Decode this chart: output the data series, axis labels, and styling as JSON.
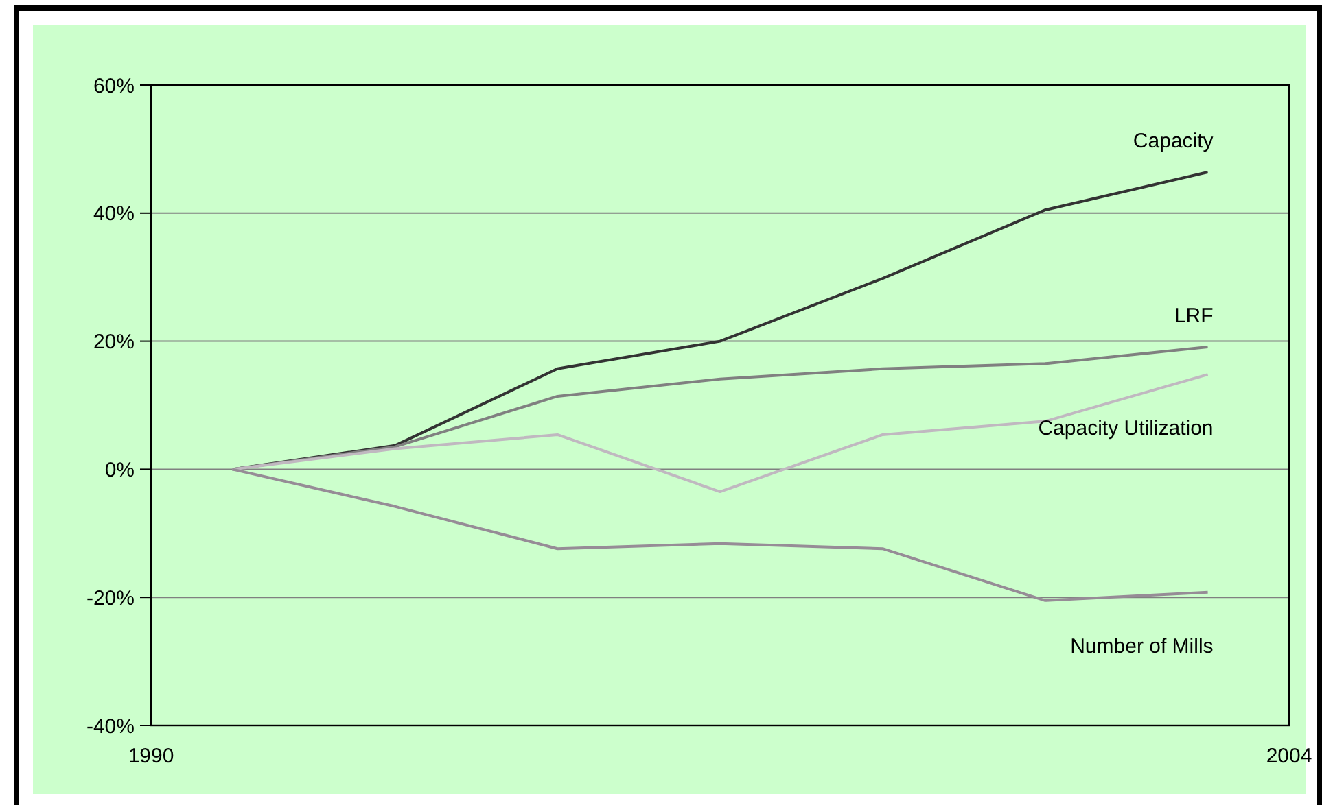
{
  "chart_data": {
    "type": "line",
    "x": [
      1991,
      1993,
      1995,
      1997,
      1999,
      2001,
      2003
    ],
    "xlim": [
      1990,
      2004
    ],
    "xticks": [
      1990,
      2004
    ],
    "ylim": [
      -40,
      60
    ],
    "yticks": [
      {
        "value": -40,
        "label": "-40%"
      },
      {
        "value": -20,
        "label": "-20%"
      },
      {
        "value": 0,
        "label": "0%"
      },
      {
        "value": 20,
        "label": "20%"
      },
      {
        "value": 40,
        "label": "40%"
      },
      {
        "value": 60,
        "label": "60%"
      }
    ],
    "grid": "y",
    "marker": "none",
    "line_style": "solid",
    "series": [
      {
        "name": "Capacity",
        "color": "#333333",
        "values": [
          0,
          3.7,
          15.7,
          20,
          29.8,
          40.5,
          46.4
        ]
      },
      {
        "name": "LRF",
        "color": "#808080",
        "values": [
          0,
          3.5,
          11.4,
          14.1,
          15.7,
          16.5,
          19.1
        ]
      },
      {
        "name": "Capacity Utilization",
        "color": "#c0b8c0",
        "values": [
          0,
          3.2,
          5.4,
          -3.5,
          5.4,
          7.5,
          14.8
        ]
      },
      {
        "name": "Number of Mills",
        "color": "#968c96",
        "values": [
          0,
          -5.8,
          -12.4,
          -11.6,
          -12.4,
          -20.5,
          -19.2
        ]
      }
    ]
  }
}
